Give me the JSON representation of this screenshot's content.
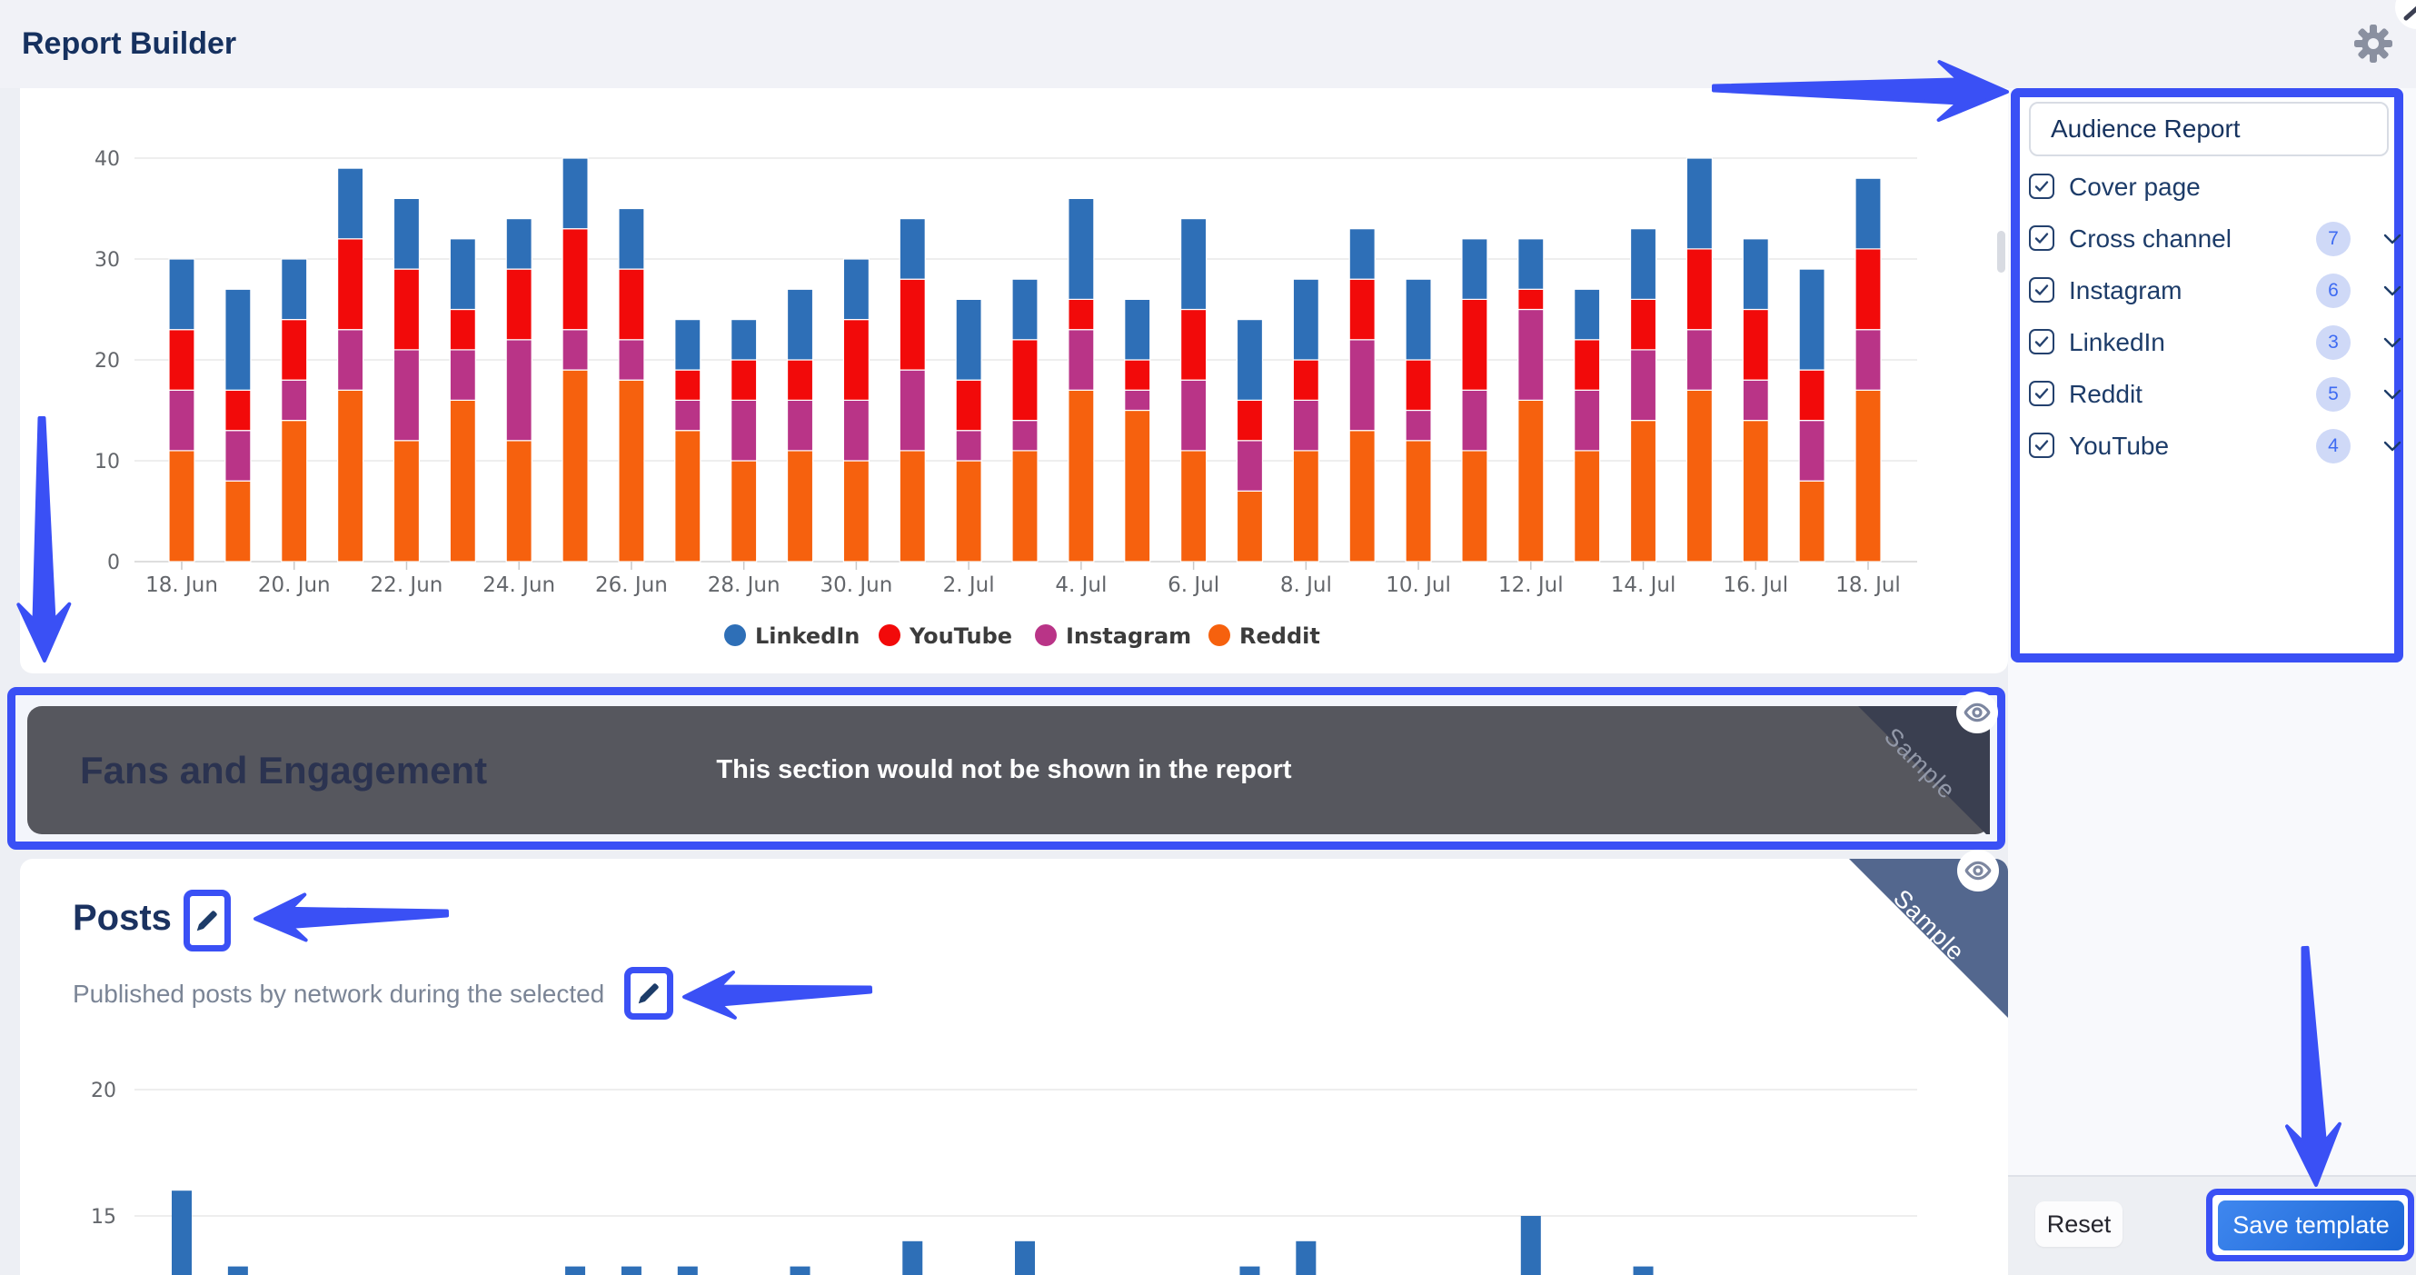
{
  "app": {
    "title": "Report Builder"
  },
  "report_panel": {
    "name_value": "Audience Report",
    "sections": [
      {
        "label": "Cover page",
        "checked": true,
        "count": null,
        "expandable": false
      },
      {
        "label": "Cross channel",
        "checked": true,
        "count": 7,
        "expandable": true
      },
      {
        "label": "Instagram",
        "checked": true,
        "count": 6,
        "expandable": true
      },
      {
        "label": "LinkedIn",
        "checked": true,
        "count": 3,
        "expandable": true
      },
      {
        "label": "Reddit",
        "checked": true,
        "count": 5,
        "expandable": true
      },
      {
        "label": "YouTube",
        "checked": true,
        "count": 4,
        "expandable": true
      }
    ],
    "reset_label": "Reset",
    "save_label": "Save template"
  },
  "fans_section": {
    "title": "Fans and Engagement",
    "overlay_message": "This section would not be shown in the report",
    "ribbon_label": "Sample"
  },
  "posts_section": {
    "title": "Posts",
    "description": "Published posts by network during the selected",
    "ribbon_label": "Sample"
  },
  "colors": {
    "annotation_blue": "#3a50f5",
    "navy_text": "#16315f",
    "linkedin": "#2e6fb7",
    "youtube": "#f20a0a",
    "instagram": "#b93487",
    "reddit": "#f6610e",
    "dark_panel": "#56575e",
    "save_button_gradient": [
      "#3f87ef",
      "#1b66d3"
    ]
  },
  "chart_data": [
    {
      "id": "cross-channel-published-posts",
      "type": "bar",
      "stacked": true,
      "categories": [
        "18. Jun",
        "19. Jun",
        "20. Jun",
        "21. Jun",
        "22. Jun",
        "23. Jun",
        "24. Jun",
        "25. Jun",
        "26. Jun",
        "27. Jun",
        "28. Jun",
        "29. Jun",
        "30. Jun",
        "1. Jul",
        "2. Jul",
        "3. Jul",
        "4. Jul",
        "5. Jul",
        "6. Jul",
        "7. Jul",
        "8. Jul",
        "9. Jul",
        "10. Jul",
        "11. Jul",
        "12. Jul",
        "13. Jul",
        "14. Jul",
        "15. Jul",
        "16. Jul",
        "17. Jul",
        "18. Jul"
      ],
      "x_tick_labels": [
        "18. Jun",
        "20. Jun",
        "22. Jun",
        "24. Jun",
        "26. Jun",
        "28. Jun",
        "30. Jun",
        "2. Jul",
        "4. Jul",
        "6. Jul",
        "8. Jul",
        "10. Jul",
        "12. Jul",
        "14. Jul",
        "16. Jul",
        "18. Jul"
      ],
      "stack_order_bottom_to_top": [
        "Reddit",
        "Instagram",
        "YouTube",
        "LinkedIn"
      ],
      "series": [
        {
          "name": "Reddit",
          "color": "#f6610e",
          "values": [
            11,
            8,
            14,
            17,
            12,
            16,
            12,
            19,
            18,
            13,
            10,
            11,
            10,
            11,
            10,
            11,
            17,
            15,
            11,
            7,
            11,
            13,
            12,
            11,
            16,
            11,
            14,
            17,
            14,
            8,
            17
          ]
        },
        {
          "name": "Instagram",
          "color": "#b93487",
          "values": [
            6,
            5,
            4,
            6,
            9,
            5,
            10,
            4,
            4,
            3,
            6,
            5,
            6,
            8,
            3,
            3,
            6,
            2,
            7,
            5,
            5,
            9,
            3,
            6,
            9,
            6,
            7,
            6,
            4,
            6,
            6
          ]
        },
        {
          "name": "YouTube",
          "color": "#f20a0a",
          "values": [
            6,
            4,
            6,
            9,
            8,
            4,
            7,
            10,
            7,
            3,
            4,
            4,
            8,
            9,
            5,
            8,
            3,
            3,
            7,
            4,
            4,
            6,
            5,
            9,
            2,
            5,
            5,
            8,
            7,
            5,
            8
          ]
        },
        {
          "name": "LinkedIn",
          "color": "#2e6fb7",
          "values": [
            7,
            10,
            6,
            7,
            7,
            7,
            5,
            7,
            6,
            5,
            4,
            7,
            6,
            6,
            8,
            6,
            10,
            6,
            9,
            8,
            8,
            5,
            8,
            6,
            5,
            5,
            7,
            9,
            7,
            10,
            7
          ]
        }
      ],
      "ylim": [
        0,
        40
      ],
      "yticks": [
        0,
        10,
        20,
        30,
        40
      ],
      "grid": "horizontal",
      "legend": {
        "position": "bottom",
        "order": [
          "LinkedIn",
          "YouTube",
          "Instagram",
          "Reddit"
        ]
      }
    },
    {
      "id": "posts-published-per-day",
      "type": "bar",
      "stacked": false,
      "partially_visible": true,
      "note": "Chart is cut off by the bottom of the screenshot; only bar tops with value >= ~13 are visible. null = bar not visible.",
      "categories": [
        "18. Jun",
        "19. Jun",
        "20. Jun",
        "21. Jun",
        "22. Jun",
        "23. Jun",
        "24. Jun",
        "25. Jun",
        "26. Jun",
        "27. Jun",
        "28. Jun",
        "29. Jun",
        "30. Jun",
        "1. Jul",
        "2. Jul",
        "3. Jul",
        "4. Jul",
        "5. Jul",
        "6. Jul",
        "7. Jul",
        "8. Jul",
        "9. Jul",
        "10. Jul",
        "11. Jul",
        "12. Jul",
        "13. Jul",
        "14. Jul",
        "15. Jul",
        "16. Jul",
        "17. Jul",
        "18. Jul"
      ],
      "series": [
        {
          "name": "Posts",
          "color": "#2e6fb7",
          "values": [
            16,
            13,
            null,
            null,
            null,
            null,
            null,
            13,
            13,
            13,
            null,
            13,
            null,
            14,
            null,
            14,
            null,
            null,
            null,
            13,
            14,
            null,
            null,
            null,
            15,
            null,
            13,
            null,
            null,
            null,
            null
          ]
        }
      ],
      "visible_yticks": [
        15,
        20
      ],
      "grid": "horizontal"
    }
  ]
}
